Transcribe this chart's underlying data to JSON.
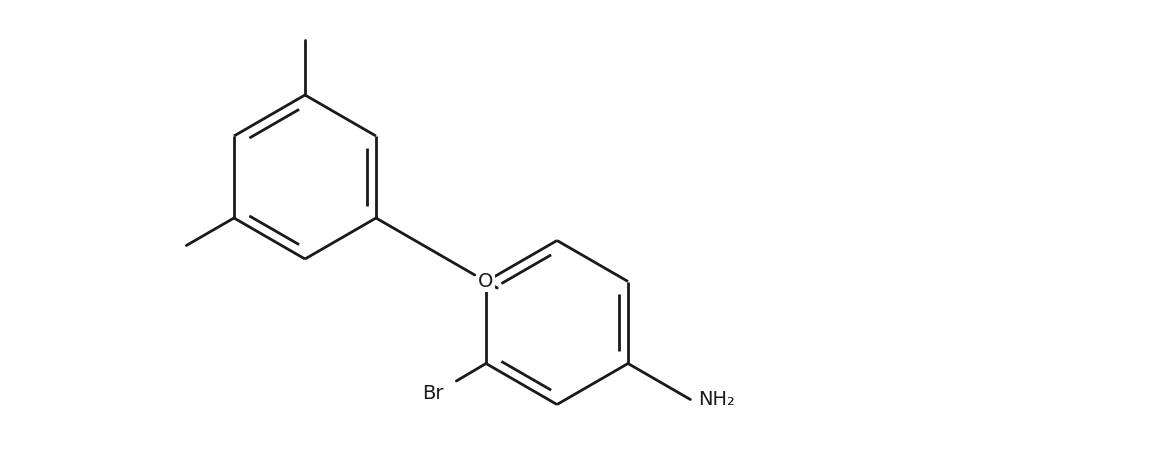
{
  "background_color": "#ffffff",
  "line_color": "#1a1a1a",
  "line_width": 2.0,
  "font_size": 14,
  "figsize": [
    11.62,
    4.72
  ],
  "dpi": 100,
  "xlim": [
    0.0,
    11.62
  ],
  "ylim": [
    0.0,
    4.72
  ]
}
